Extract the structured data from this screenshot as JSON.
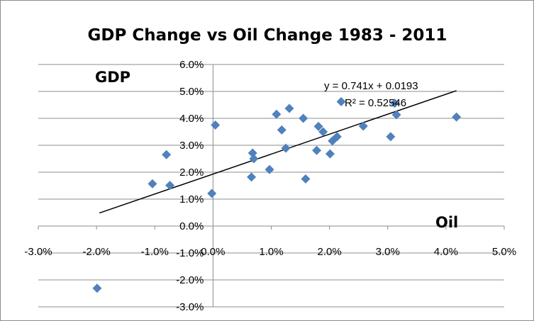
{
  "chart_data": {
    "type": "scatter",
    "title": "GDP Change vs Oil Change 1983 - 2011",
    "xlabel": "Oil",
    "ylabel": "GDP",
    "xlim": [
      -0.03,
      0.05
    ],
    "ylim": [
      -0.03,
      0.06
    ],
    "x_ticks": [
      -0.03,
      -0.02,
      -0.01,
      0.0,
      0.01,
      0.02,
      0.03,
      0.04,
      0.05
    ],
    "y_ticks": [
      -0.03,
      -0.02,
      -0.01,
      0.0,
      0.01,
      0.02,
      0.03,
      0.04,
      0.05,
      0.06
    ],
    "x_tick_labels": [
      "-3.0%",
      "-2.0%",
      "-1.0%",
      "0.0%",
      "1.0%",
      "2.0%",
      "3.0%",
      "4.0%",
      "5.0%"
    ],
    "y_tick_labels": [
      "-3.0%",
      "-2.0%",
      "-1.0%",
      "0.0%",
      "1.0%",
      "2.0%",
      "3.0%",
      "4.0%",
      "5.0%",
      "6.0%"
    ],
    "grid": true,
    "marker": "diamond",
    "marker_color": "#4F81BD",
    "trendline": {
      "slope": 0.741,
      "intercept": 0.0193,
      "x_range": [
        -0.0195,
        0.0418
      ],
      "equation": "y = 0.741x + 0.0193",
      "r_squared": "R² = 0.52546"
    },
    "points": [
      {
        "x": -0.0199,
        "y": -0.0231
      },
      {
        "x": -0.0104,
        "y": 0.0157
      },
      {
        "x": -0.008,
        "y": 0.0265
      },
      {
        "x": -0.0074,
        "y": 0.0151
      },
      {
        "x": -0.0002,
        "y": 0.0121
      },
      {
        "x": 0.0004,
        "y": 0.0375
      },
      {
        "x": 0.0066,
        "y": 0.0182
      },
      {
        "x": 0.0068,
        "y": 0.0271
      },
      {
        "x": 0.007,
        "y": 0.025
      },
      {
        "x": 0.0097,
        "y": 0.021
      },
      {
        "x": 0.0109,
        "y": 0.0415
      },
      {
        "x": 0.0118,
        "y": 0.0357
      },
      {
        "x": 0.0125,
        "y": 0.0289
      },
      {
        "x": 0.0131,
        "y": 0.0437
      },
      {
        "x": 0.0155,
        "y": 0.04
      },
      {
        "x": 0.0159,
        "y": 0.0175
      },
      {
        "x": 0.0178,
        "y": 0.0281
      },
      {
        "x": 0.0181,
        "y": 0.037
      },
      {
        "x": 0.0189,
        "y": 0.035
      },
      {
        "x": 0.0201,
        "y": 0.0268
      },
      {
        "x": 0.0205,
        "y": 0.0316
      },
      {
        "x": 0.0213,
        "y": 0.0332
      },
      {
        "x": 0.022,
        "y": 0.0462
      },
      {
        "x": 0.0258,
        "y": 0.0371
      },
      {
        "x": 0.0305,
        "y": 0.0332
      },
      {
        "x": 0.0312,
        "y": 0.0456
      },
      {
        "x": 0.0315,
        "y": 0.0413
      },
      {
        "x": 0.0418,
        "y": 0.0405
      }
    ]
  }
}
